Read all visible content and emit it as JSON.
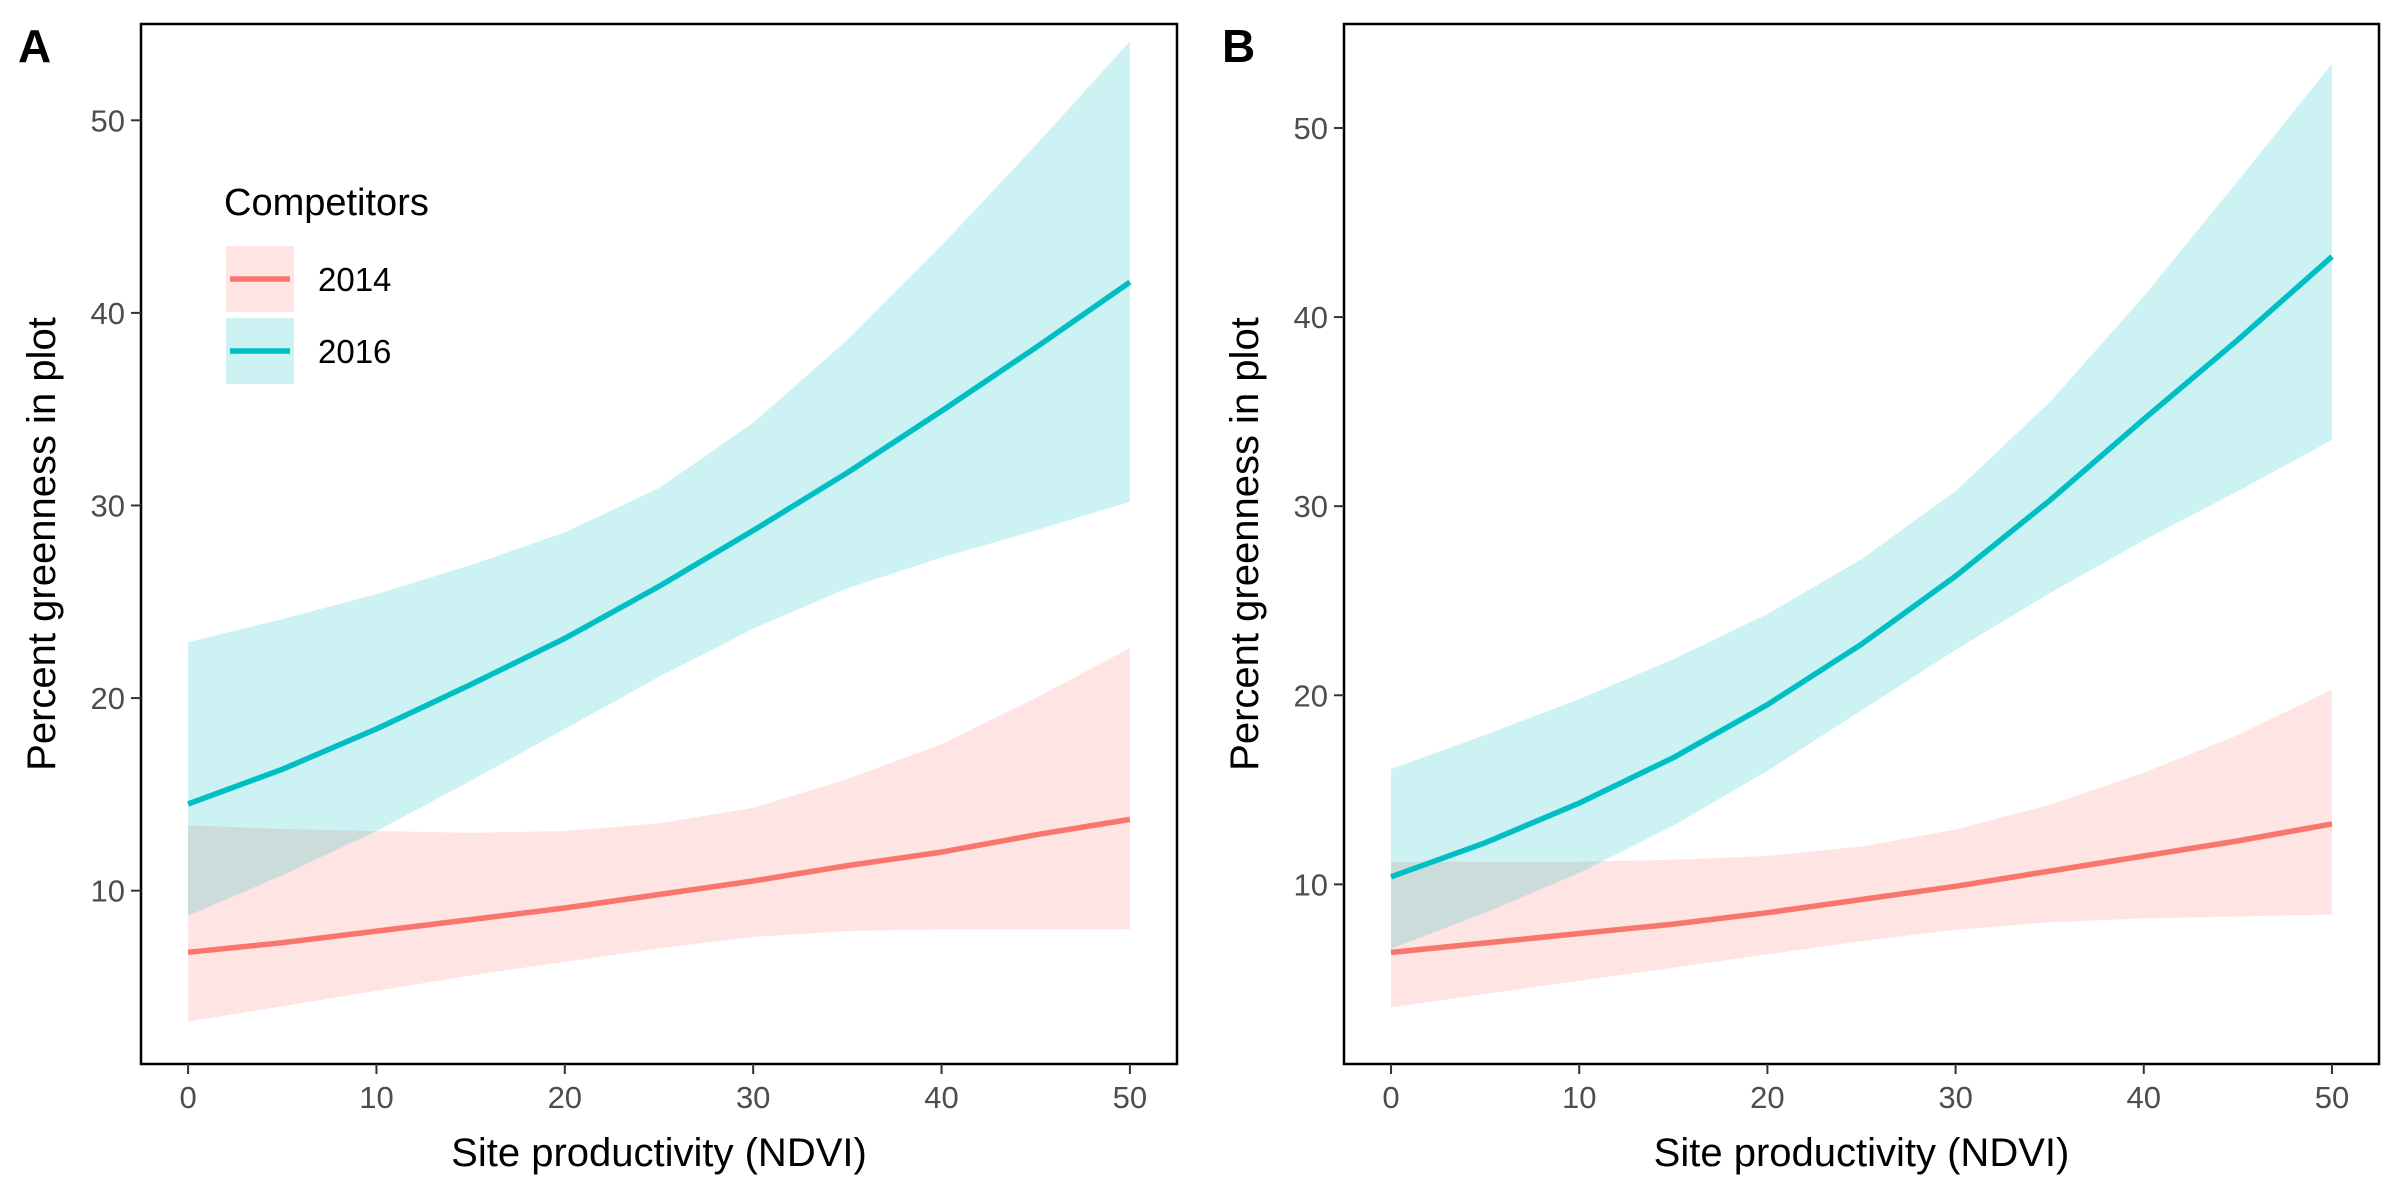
{
  "chart_data": [
    {
      "type": "line",
      "panel_label": "A",
      "xlabel": "Site productivity (NDVI)",
      "ylabel": "Percent greenness in plot",
      "xlim": [
        -2.5,
        52.5
      ],
      "ylim": [
        1,
        55
      ],
      "xticks": [
        "0",
        "10",
        "20",
        "30",
        "40",
        "50"
      ],
      "yticks": [
        "10",
        "20",
        "30",
        "40",
        "50"
      ],
      "x": [
        0,
        5,
        10,
        15,
        20,
        25,
        30,
        35,
        40,
        45,
        50
      ],
      "grid": false,
      "legend": {
        "title": "Competitors",
        "position": "top-left"
      },
      "series": [
        {
          "name": "2014",
          "color": "#F8766D",
          "values": [
            6.8,
            7.3,
            7.9,
            8.5,
            9.1,
            9.8,
            10.5,
            11.3,
            12.0,
            12.9,
            13.7
          ],
          "lower": [
            3.2,
            4.0,
            4.8,
            5.6,
            6.3,
            7.0,
            7.6,
            7.9,
            8.0,
            8.0,
            8.0
          ],
          "upper": [
            13.4,
            13.2,
            13.1,
            13.0,
            13.1,
            13.5,
            14.3,
            15.8,
            17.6,
            20.0,
            22.6
          ]
        },
        {
          "name": "2016",
          "color": "#00BFC4",
          "values": [
            14.5,
            16.3,
            18.4,
            20.7,
            23.1,
            25.8,
            28.7,
            31.7,
            34.9,
            38.2,
            41.6
          ],
          "lower": [
            8.7,
            10.8,
            13.1,
            15.7,
            18.4,
            21.1,
            23.6,
            25.7,
            27.3,
            28.7,
            30.2
          ],
          "upper": [
            22.9,
            24.1,
            25.4,
            26.9,
            28.6,
            30.9,
            34.3,
            38.6,
            43.5,
            48.7,
            54.1
          ]
        }
      ]
    },
    {
      "type": "line",
      "panel_label": "B",
      "xlabel": "Site productivity (NDVI)",
      "ylabel": "Percent greenness in plot",
      "xlim": [
        -2.5,
        52.5
      ],
      "ylim": [
        0.5,
        55.5
      ],
      "xticks": [
        "0",
        "10",
        "20",
        "30",
        "40",
        "50"
      ],
      "yticks": [
        "10",
        "20",
        "30",
        "40",
        "50"
      ],
      "x": [
        0,
        5,
        10,
        15,
        20,
        25,
        30,
        35,
        40,
        45,
        50
      ],
      "grid": false,
      "series": [
        {
          "name": "2014",
          "color": "#F8766D",
          "values": [
            6.4,
            6.9,
            7.4,
            7.9,
            8.5,
            9.2,
            9.9,
            10.7,
            11.5,
            12.3,
            13.2
          ],
          "lower": [
            3.5,
            4.2,
            4.9,
            5.6,
            6.3,
            7.0,
            7.6,
            8.0,
            8.2,
            8.3,
            8.4
          ],
          "upper": [
            11.2,
            11.2,
            11.2,
            11.3,
            11.5,
            12.0,
            12.9,
            14.2,
            15.9,
            17.9,
            20.3
          ]
        },
        {
          "name": "2016",
          "color": "#00BFC4",
          "values": [
            10.4,
            12.2,
            14.3,
            16.7,
            19.5,
            22.7,
            26.3,
            30.3,
            34.6,
            38.8,
            43.2
          ],
          "lower": [
            6.6,
            8.5,
            10.6,
            13.1,
            16.0,
            19.2,
            22.4,
            25.4,
            28.2,
            30.8,
            33.5
          ],
          "upper": [
            16.1,
            17.9,
            19.8,
            21.9,
            24.3,
            27.2,
            30.8,
            35.5,
            41.1,
            47.2,
            53.4
          ]
        }
      ]
    }
  ]
}
